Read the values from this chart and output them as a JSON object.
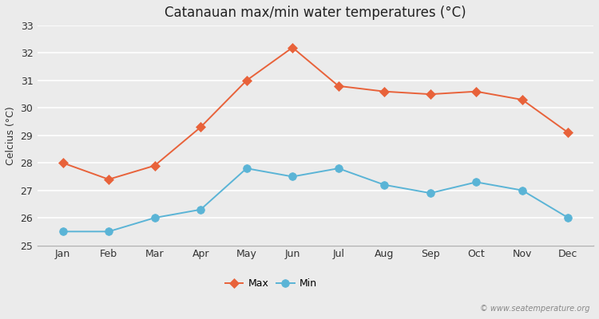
{
  "months": [
    "Jan",
    "Feb",
    "Mar",
    "Apr",
    "May",
    "Jun",
    "Jul",
    "Aug",
    "Sep",
    "Oct",
    "Nov",
    "Dec"
  ],
  "max_temps": [
    28.0,
    27.4,
    27.9,
    29.3,
    31.0,
    32.2,
    30.8,
    30.6,
    30.5,
    30.6,
    30.3,
    29.1
  ],
  "min_temps": [
    25.5,
    25.5,
    26.0,
    26.3,
    27.8,
    27.5,
    27.8,
    27.2,
    26.9,
    27.3,
    27.0,
    26.0
  ],
  "max_color": "#e8623a",
  "min_color": "#5ab4d6",
  "title": "Catanauan max/min water temperatures (°C)",
  "ylabel": "Celcius (°C)",
  "ylim": [
    25,
    33
  ],
  "yticks": [
    25,
    26,
    27,
    28,
    29,
    30,
    31,
    32,
    33
  ],
  "plot_bg_color": "#ebebeb",
  "grid_color": "#ffffff",
  "watermark": "© www.seatemperature.org",
  "legend_max": "Max",
  "legend_min": "Min",
  "title_fontsize": 12,
  "label_fontsize": 9,
  "tick_fontsize": 9,
  "marker_size_max": 6,
  "marker_size_min": 7
}
